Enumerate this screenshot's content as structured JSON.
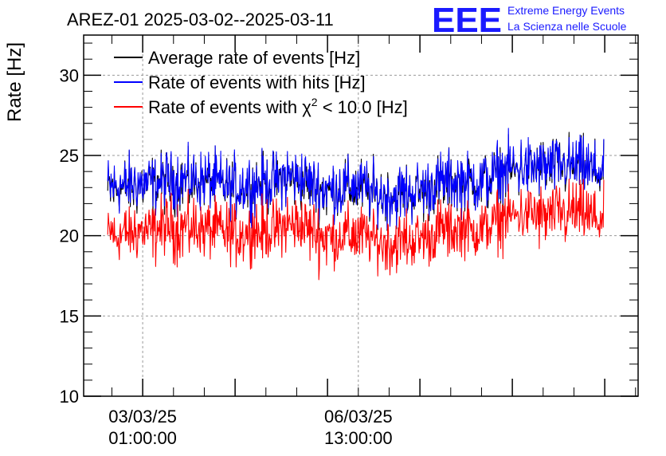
{
  "header": {
    "title": "AREZ-01 2025-03-02--2025-03-11",
    "logo_text": "EEE",
    "logo_line1": "Extreme Energy Events",
    "logo_line2": "La Scienza nelle Scuole"
  },
  "chart_data": {
    "type": "line",
    "title": "AREZ-01 2025-03-02--2025-03-11",
    "ylabel": "Rate [Hz]",
    "xlabel": "",
    "ylim": [
      10,
      32.5
    ],
    "yticks": [
      10,
      15,
      20,
      25,
      30
    ],
    "xlim": [
      "2025-03-02 02:00",
      "2025-03-11 02:00"
    ],
    "xticks": [
      {
        "date": "03/03/25",
        "time": "01:00:00",
        "x": "2025-03-03 01:00"
      },
      {
        "date": "06/03/25",
        "time": "13:00:00",
        "x": "2025-03-06 13:00"
      }
    ],
    "grid": true,
    "legend_position": "top-left",
    "series": [
      {
        "name": "Average rate of events [Hz]",
        "color": "#000000",
        "x": [
          "2025-03-02 12:00",
          "2025-03-03 00:00",
          "2025-03-03 12:00",
          "2025-03-04 00:00",
          "2025-03-04 12:00",
          "2025-03-05 00:00",
          "2025-03-05 12:00",
          "2025-03-06 00:00",
          "2025-03-06 12:00",
          "2025-03-07 00:00",
          "2025-03-07 12:00",
          "2025-03-08 00:00",
          "2025-03-08 12:00",
          "2025-03-09 00:00",
          "2025-03-09 12:00",
          "2025-03-10 00:00",
          "2025-03-10 12:00"
        ],
        "y": [
          22.9,
          23.1,
          23.4,
          23.4,
          23.0,
          23.2,
          23.6,
          22.8,
          23.0,
          22.4,
          22.7,
          23.3,
          23.3,
          24.1,
          24.2,
          24.3,
          23.9
        ]
      },
      {
        "name": "Rate of events with hits [Hz]",
        "color": "#0000ff",
        "x": [
          "2025-03-02 12:00",
          "2025-03-03 00:00",
          "2025-03-03 12:00",
          "2025-03-04 00:00",
          "2025-03-04 12:00",
          "2025-03-05 00:00",
          "2025-03-05 12:00",
          "2025-03-06 00:00",
          "2025-03-06 12:00",
          "2025-03-07 00:00",
          "2025-03-07 12:00",
          "2025-03-08 00:00",
          "2025-03-08 12:00",
          "2025-03-09 00:00",
          "2025-03-09 12:00",
          "2025-03-10 00:00",
          "2025-03-10 12:00"
        ],
        "y": [
          23.0,
          23.2,
          23.5,
          23.5,
          23.1,
          23.3,
          23.7,
          22.9,
          23.1,
          22.5,
          22.8,
          23.4,
          23.4,
          24.2,
          24.3,
          24.4,
          24.0
        ]
      },
      {
        "name": "Rate of events with χ² < 10.0 [Hz]",
        "name_main": "Rate of events with ",
        "name_chi": "χ",
        "name_sup": "2",
        "name_tail": " < 10.0 [Hz]",
        "color": "#ff0000",
        "x": [
          "2025-03-02 12:00",
          "2025-03-03 00:00",
          "2025-03-03 12:00",
          "2025-03-04 00:00",
          "2025-03-04 12:00",
          "2025-03-05 00:00",
          "2025-03-05 12:00",
          "2025-03-06 00:00",
          "2025-03-06 12:00",
          "2025-03-07 00:00",
          "2025-03-07 12:00",
          "2025-03-08 00:00",
          "2025-03-08 12:00",
          "2025-03-09 00:00",
          "2025-03-09 12:00",
          "2025-03-10 00:00",
          "2025-03-10 12:00"
        ],
        "y": [
          20.0,
          20.2,
          20.5,
          20.5,
          20.1,
          20.3,
          20.7,
          19.9,
          20.1,
          19.5,
          19.8,
          20.4,
          20.4,
          21.2,
          21.3,
          21.4,
          21.0
        ]
      }
    ],
    "noise_amplitude": 0.9
  }
}
